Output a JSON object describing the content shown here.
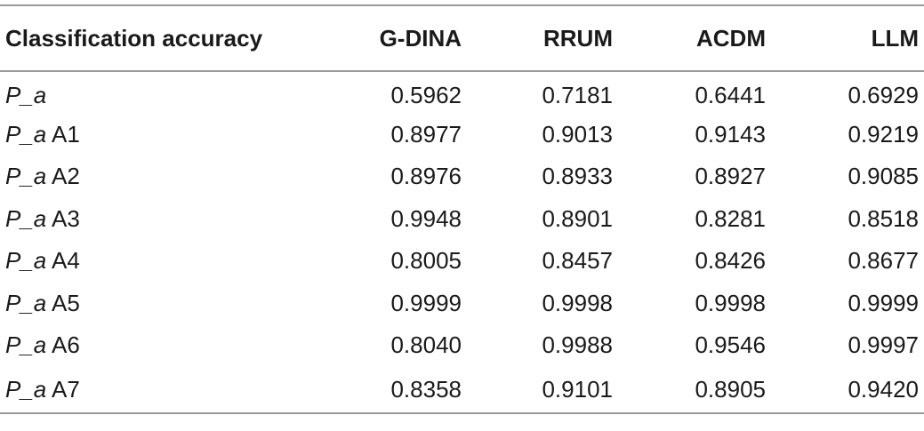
{
  "table": {
    "headers": [
      "Classification accuracy",
      "G-DINA",
      "RRUM",
      "ACDM",
      "LLM"
    ],
    "rows": [
      {
        "label_italic": "P_a",
        "label_suffix": "",
        "values": [
          "0.5962",
          "0.7181",
          "0.6441",
          "0.6929"
        ]
      },
      {
        "label_italic": "P_a",
        "label_suffix": " A1",
        "values": [
          "0.8977",
          "0.9013",
          "0.9143",
          "0.9219"
        ]
      },
      {
        "label_italic": "P_a",
        "label_suffix": " A2",
        "values": [
          "0.8976",
          "0.8933",
          "0.8927",
          "0.9085"
        ]
      },
      {
        "label_italic": "P_a",
        "label_suffix": " A3",
        "values": [
          "0.9948",
          "0.8901",
          "0.8281",
          "0.8518"
        ]
      },
      {
        "label_italic": "P_a",
        "label_suffix": " A4",
        "values": [
          "0.8005",
          "0.8457",
          "0.8426",
          "0.8677"
        ]
      },
      {
        "label_italic": "P_a",
        "label_suffix": " A5",
        "values": [
          "0.9999",
          "0.9998",
          "0.9998",
          "0.9999"
        ]
      },
      {
        "label_italic": "P_a",
        "label_suffix": " A6",
        "values": [
          "0.8040",
          "0.9988",
          "0.9546",
          "0.9997"
        ]
      },
      {
        "label_italic": "P_a",
        "label_suffix": " A7",
        "values": [
          "0.8358",
          "0.9101",
          "0.8905",
          "0.9420"
        ]
      }
    ]
  }
}
